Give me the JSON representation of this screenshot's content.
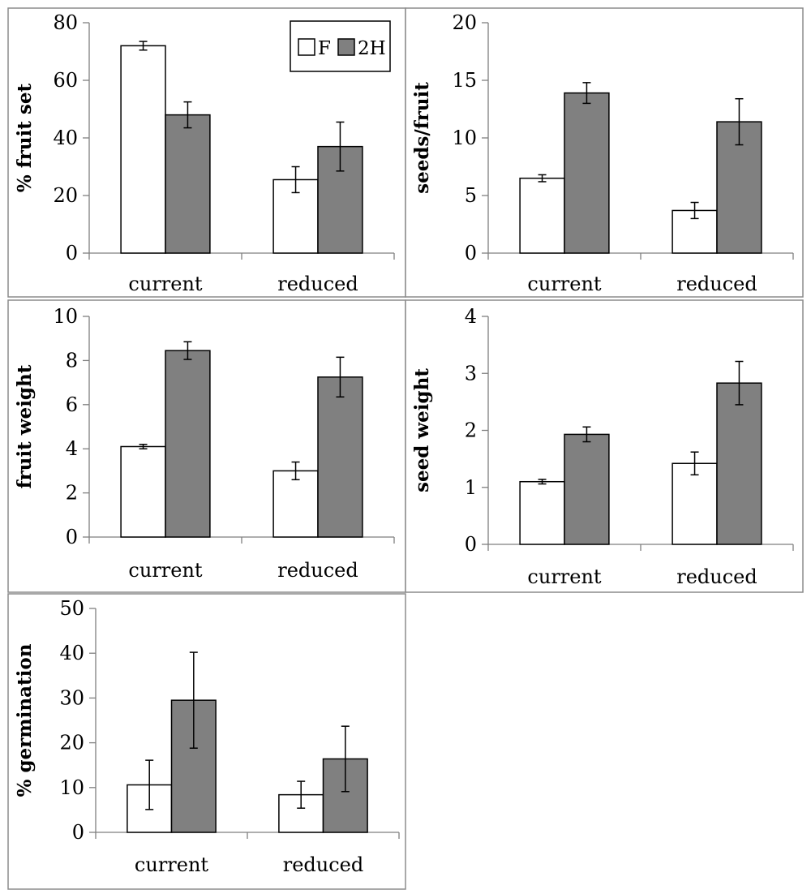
{
  "colors": {
    "F": "#ffffff",
    "2H": "#808080"
  },
  "chart_data": [
    {
      "type": "bar",
      "ylabel": "% fruit set",
      "ylim": [
        0,
        80
      ],
      "yticks": [
        0,
        20,
        40,
        60,
        80
      ],
      "categories": [
        "current",
        "reduced"
      ],
      "series": [
        {
          "name": "F",
          "values": [
            72,
            25.5
          ],
          "errors": [
            1.5,
            4.5
          ]
        },
        {
          "name": "2H",
          "values": [
            48,
            37
          ],
          "errors": [
            4.5,
            8.5
          ]
        }
      ],
      "legend": {
        "placement": "top-right",
        "entries": [
          "F",
          "2H"
        ]
      }
    },
    {
      "type": "bar",
      "ylabel": "seeds/fruit",
      "ylim": [
        0,
        20
      ],
      "yticks": [
        0,
        5,
        10,
        15,
        20
      ],
      "categories": [
        "current",
        "reduced"
      ],
      "series": [
        {
          "name": "F",
          "values": [
            6.5,
            3.7
          ],
          "errors": [
            0.3,
            0.7
          ]
        },
        {
          "name": "2H",
          "values": [
            13.9,
            11.4
          ],
          "errors": [
            0.9,
            2.0
          ]
        }
      ]
    },
    {
      "type": "bar",
      "ylabel": "fruit weight",
      "ylim": [
        0,
        10
      ],
      "yticks": [
        0,
        2,
        4,
        6,
        8,
        10
      ],
      "categories": [
        "current",
        "reduced"
      ],
      "series": [
        {
          "name": "F",
          "values": [
            4.1,
            3.0
          ],
          "errors": [
            0.1,
            0.4
          ]
        },
        {
          "name": "2H",
          "values": [
            8.45,
            7.25
          ],
          "errors": [
            0.4,
            0.9
          ]
        }
      ]
    },
    {
      "type": "bar",
      "ylabel": "seed weight",
      "ylim": [
        0,
        4
      ],
      "yticks": [
        0,
        1,
        2,
        3,
        4
      ],
      "categories": [
        "current",
        "reduced"
      ],
      "series": [
        {
          "name": "F",
          "values": [
            1.1,
            1.42
          ],
          "errors": [
            0.04,
            0.2
          ]
        },
        {
          "name": "2H",
          "values": [
            1.93,
            2.83
          ],
          "errors": [
            0.13,
            0.38
          ]
        }
      ]
    },
    {
      "type": "bar",
      "ylabel": "% germination",
      "ylim": [
        0,
        50
      ],
      "yticks": [
        0,
        10,
        20,
        30,
        40,
        50
      ],
      "categories": [
        "current",
        "reduced"
      ],
      "series": [
        {
          "name": "F",
          "values": [
            10.6,
            8.4
          ],
          "errors": [
            5.5,
            3.0
          ]
        },
        {
          "name": "2H",
          "values": [
            29.5,
            16.4
          ],
          "errors": [
            10.7,
            7.3
          ]
        }
      ]
    }
  ]
}
